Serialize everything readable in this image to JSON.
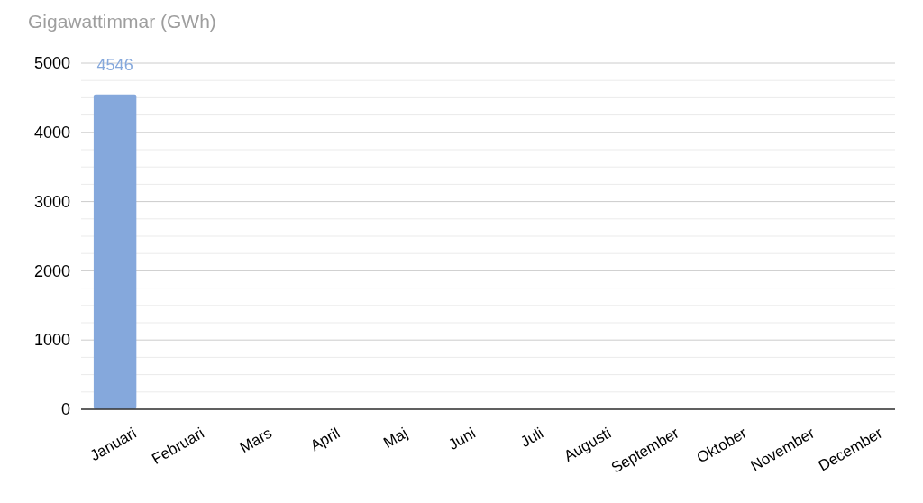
{
  "chart_data": {
    "type": "bar",
    "ylabel": "Gigawattimmar (GWh)",
    "categories": [
      "Januari",
      "Februari",
      "Mars",
      "April",
      "Maj",
      "Juni",
      "Juli",
      "Augusti",
      "September",
      "Oktober",
      "November",
      "December"
    ],
    "values": [
      4546,
      null,
      null,
      null,
      null,
      null,
      null,
      null,
      null,
      null,
      null,
      null
    ],
    "color": "#85a8dc",
    "data_labels": true,
    "ylim": [
      0,
      5000
    ],
    "yticks": [
      0,
      {
        "value": 250,
        "label": null
      },
      {
        "value": 500,
        "label": null
      },
      {
        "value": 750,
        "label": null
      },
      1000,
      {
        "value": 1250,
        "label": null
      },
      {
        "value": 1500,
        "label": null
      },
      {
        "value": 1750,
        "label": null
      },
      2000,
      {
        "value": 2250,
        "label": null
      },
      {
        "value": 2500,
        "label": null
      },
      {
        "value": 2750,
        "label": null
      },
      3000,
      {
        "value": 3250,
        "label": null
      },
      {
        "value": 3500,
        "label": null
      },
      {
        "value": 3750,
        "label": null
      },
      4000,
      {
        "value": 4250,
        "label": null
      },
      {
        "value": 4500,
        "label": null
      },
      {
        "value": 4750,
        "label": null
      },
      5000
    ],
    "grid": "y"
  }
}
